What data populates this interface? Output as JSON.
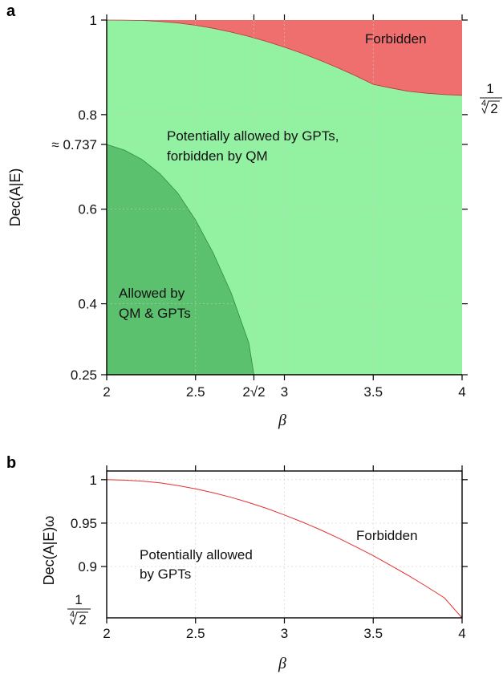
{
  "chart_data": [
    {
      "panel": "a",
      "type": "area",
      "xlabel": "β",
      "ylabel": "Dec(A|E)",
      "xlim": [
        2,
        4
      ],
      "ylim": [
        0.25,
        1
      ],
      "x_ticks": [
        "2",
        "2.5",
        "2√2",
        "3",
        "3.5",
        "4"
      ],
      "x_tick_values": [
        2,
        2.5,
        2.8284,
        3,
        3.5,
        4
      ],
      "y_ticks": [
        "0.25",
        "0.4",
        "0.6",
        "≈ 0.737",
        "0.8",
        "1"
      ],
      "y_tick_values": [
        0.25,
        0.4,
        0.6,
        0.737,
        0.8,
        1
      ],
      "right_annotation": {
        "numerator": "1",
        "root_index": "4",
        "radicand": "2",
        "value": 0.8409
      },
      "grid": true,
      "regions": [
        {
          "label": "Forbidden",
          "color": "#ef6f6f"
        },
        {
          "label_lines": [
            "Potentially allowed by GPTs,",
            "forbidden by QM"
          ],
          "color": "#93f2a2"
        },
        {
          "label_lines": [
            "Allowed by",
            "QM & GPTs"
          ],
          "color": "#5cc16f"
        }
      ],
      "gpt_boundary": {
        "x": [
          2.0,
          2.1,
          2.2,
          2.3,
          2.4,
          2.5,
          2.6,
          2.7,
          2.8,
          2.9,
          3.0,
          3.1,
          3.2,
          3.3,
          3.4,
          3.5,
          3.6,
          3.7,
          3.8,
          3.9,
          4.0
        ],
        "y": [
          1.0,
          0.9999,
          0.9991,
          0.9972,
          0.9939,
          0.9889,
          0.9825,
          0.9746,
          0.9654,
          0.9547,
          0.9428,
          0.9295,
          0.915,
          0.8992,
          0.8822,
          0.8641,
          0.8563,
          0.8491,
          0.8452,
          0.8425,
          0.8409
        ]
      },
      "qm_boundary": {
        "x": [
          2.0,
          2.1,
          2.2,
          2.3,
          2.4,
          2.5,
          2.6,
          2.7,
          2.8,
          2.8284
        ],
        "y": [
          0.737,
          0.725,
          0.705,
          0.675,
          0.634,
          0.577,
          0.507,
          0.423,
          0.317,
          0.25
        ]
      }
    },
    {
      "panel": "b",
      "type": "line",
      "xlabel": "β",
      "ylabel": "Dec(A|E)ω",
      "xlim": [
        2,
        4
      ],
      "ylim": [
        0.8409,
        1.01
      ],
      "x_ticks": [
        "2",
        "2.5",
        "3",
        "3.5",
        "4"
      ],
      "x_tick_values": [
        2,
        2.5,
        3,
        3.5,
        4
      ],
      "y_ticks": [
        "0.9",
        "0.95",
        "1"
      ],
      "y_tick_values": [
        0.9,
        0.95,
        1
      ],
      "bottom_annotation": {
        "numerator": "1",
        "root_index": "4",
        "radicand": "2",
        "value": 0.8409
      },
      "grid": true,
      "region_labels": [
        {
          "label": "Forbidden"
        },
        {
          "label_lines": [
            "Potentially allowed",
            "by GPTs"
          ]
        }
      ],
      "series": [
        {
          "color": "#e53030",
          "x": [
            2.0,
            2.1,
            2.2,
            2.3,
            2.4,
            2.5,
            2.6,
            2.7,
            2.8,
            2.9,
            3.0,
            3.1,
            3.2,
            3.3,
            3.4,
            3.5,
            3.6,
            3.7,
            3.8,
            3.9,
            4.0
          ],
          "y": [
            1.0,
            0.9995,
            0.9984,
            0.9963,
            0.9933,
            0.9895,
            0.985,
            0.9797,
            0.9736,
            0.9669,
            0.9594,
            0.9513,
            0.9425,
            0.9331,
            0.923,
            0.9124,
            0.9011,
            0.8893,
            0.8769,
            0.864,
            0.8409
          ]
        }
      ]
    }
  ]
}
